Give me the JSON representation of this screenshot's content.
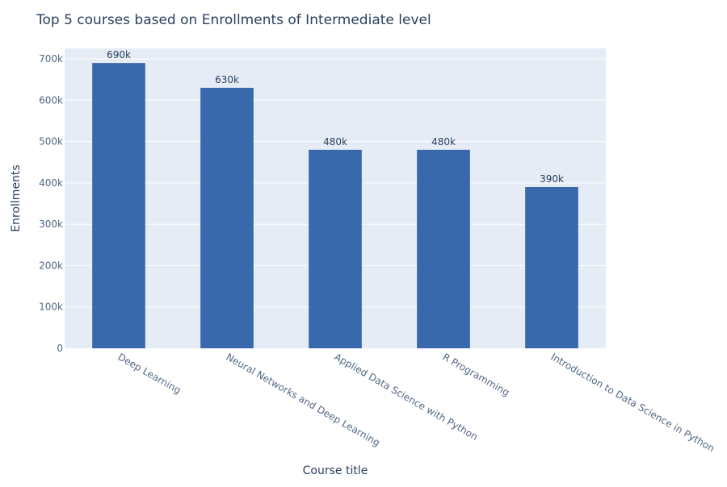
{
  "chart_data": {
    "type": "bar",
    "title": "Top 5 courses based on Enrollments of Intermediate level",
    "xlabel": "Course title",
    "ylabel": "Enrollments",
    "categories": [
      "Deep Learning",
      "Neural Networks and Deep Learning",
      "Applied Data Science with Python",
      "R Programming",
      "Introduction to Data Science in Python"
    ],
    "values": [
      690000,
      630000,
      480000,
      480000,
      390000
    ],
    "data_labels": [
      "690k",
      "630k",
      "480k",
      "480k",
      "390k"
    ],
    "ylim": [
      0,
      700000
    ],
    "y_ticks": [
      0,
      100000,
      200000,
      300000,
      400000,
      500000,
      600000,
      700000
    ],
    "y_tick_labels": [
      "0",
      "100k",
      "200k",
      "300k",
      "400k",
      "500k",
      "600k",
      "700k"
    ],
    "grid": true,
    "colors": {
      "bar": "#3a68ad",
      "plot_background": "#e5ecf6",
      "grid": "#ffffff",
      "text": "#2a3f5f",
      "tick_text": "#506784"
    }
  }
}
